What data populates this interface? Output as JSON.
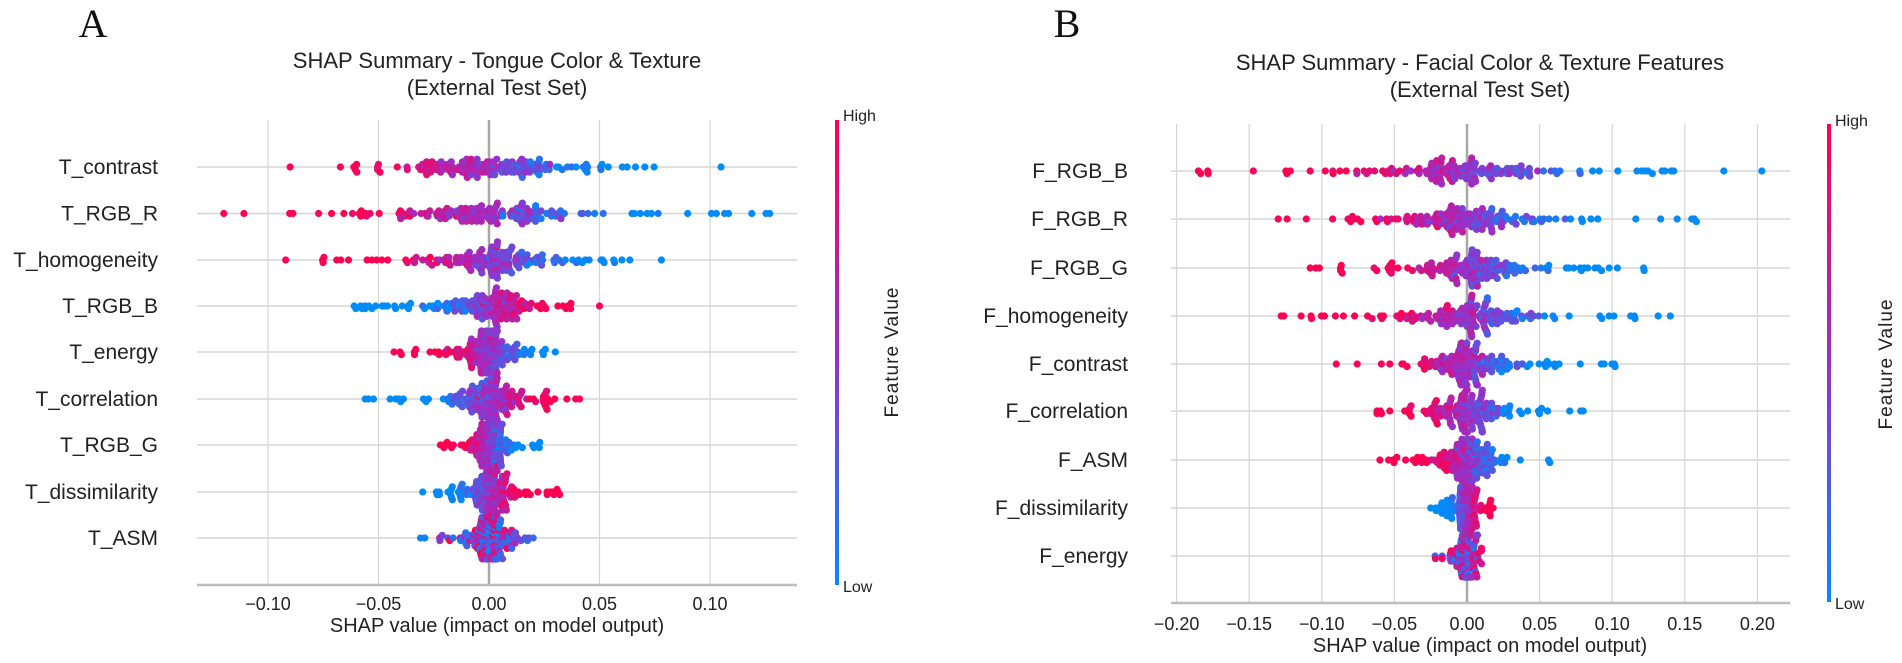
{
  "colors": {
    "high": "#ff0052",
    "mid": "#9a2fc9",
    "low": "#008bfb",
    "grid": "#d6d6d6",
    "zero": "#a8a8a8"
  },
  "chart_data": [
    {
      "panel": "A",
      "type": "scatter",
      "subtype": "shap-beeswarm",
      "title": [
        "SHAP Summary - Tongue Color & Texture",
        "(External Test Set)"
      ],
      "xlabel": "SHAP value (impact on model output)",
      "xticks": [
        -0.1,
        -0.05,
        0.0,
        0.05,
        0.1
      ],
      "xtick_labels": [
        "−0.10",
        "−0.05",
        "0.00",
        "0.05",
        "0.10"
      ],
      "xlim": [
        -0.133,
        0.139
      ],
      "colorbar": {
        "label": "Feature Value",
        "high": "High",
        "low": "Low"
      },
      "features": [
        {
          "name": "T_contrast",
          "min": -0.09,
          "max": 0.105,
          "high_effect": "negative"
        },
        {
          "name": "T_RGB_R",
          "min": -0.12,
          "max": 0.127,
          "high_effect": "negative"
        },
        {
          "name": "T_homogeneity",
          "min": -0.092,
          "max": 0.078,
          "high_effect": "negative"
        },
        {
          "name": "T_RGB_B",
          "min": -0.061,
          "max": 0.05,
          "high_effect": "positive"
        },
        {
          "name": "T_energy",
          "min": -0.043,
          "max": 0.03,
          "high_effect": "negative"
        },
        {
          "name": "T_correlation",
          "min": -0.056,
          "max": 0.041,
          "high_effect": "positive"
        },
        {
          "name": "T_RGB_G",
          "min": -0.022,
          "max": 0.023,
          "high_effect": "negative"
        },
        {
          "name": "T_dissimilarity",
          "min": -0.03,
          "max": 0.032,
          "high_effect": "positive"
        },
        {
          "name": "T_ASM",
          "min": -0.031,
          "max": 0.02,
          "high_effect": "mixed"
        }
      ]
    },
    {
      "panel": "B",
      "type": "scatter",
      "subtype": "shap-beeswarm",
      "title": [
        "SHAP Summary - Facial Color & Texture Features",
        "(External Test Set)"
      ],
      "xlabel": "SHAP value (impact on model output)",
      "xticks": [
        -0.2,
        -0.15,
        -0.1,
        -0.05,
        0.0,
        0.05,
        0.1,
        0.15,
        0.2
      ],
      "xtick_labels": [
        "−0.20",
        "−0.15",
        "−0.10",
        "−0.05",
        "0.00",
        "0.05",
        "0.10",
        "0.15",
        "0.20"
      ],
      "xlim": [
        -0.204,
        0.222
      ],
      "colorbar": {
        "label": "Feature Value",
        "high": "High",
        "low": "Low"
      },
      "features": [
        {
          "name": "F_RGB_B",
          "min": -0.185,
          "max": 0.203,
          "high_effect": "negative"
        },
        {
          "name": "F_RGB_R",
          "min": -0.13,
          "max": 0.158,
          "high_effect": "negative"
        },
        {
          "name": "F_RGB_G",
          "min": -0.108,
          "max": 0.122,
          "high_effect": "negative"
        },
        {
          "name": "F_homogeneity",
          "min": -0.128,
          "max": 0.14,
          "high_effect": "negative"
        },
        {
          "name": "F_contrast",
          "min": -0.09,
          "max": 0.102,
          "high_effect": "negative"
        },
        {
          "name": "F_correlation",
          "min": -0.062,
          "max": 0.08,
          "high_effect": "negative"
        },
        {
          "name": "F_ASM",
          "min": -0.06,
          "max": 0.057,
          "high_effect": "negative"
        },
        {
          "name": "F_dissimilarity",
          "min": -0.025,
          "max": 0.018,
          "high_effect": "positive"
        },
        {
          "name": "F_energy",
          "min": -0.022,
          "max": 0.01,
          "high_effect": "mixed"
        }
      ]
    }
  ]
}
